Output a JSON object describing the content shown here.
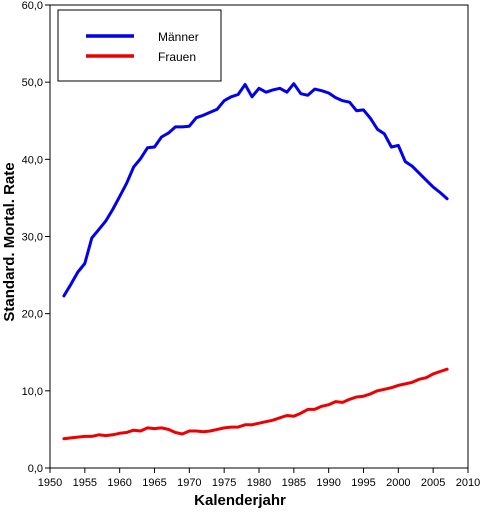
{
  "chart_data": {
    "type": "line",
    "xlabel": "Kalenderjahr",
    "ylabel": "Standard. Mortal. Rate",
    "xlim": [
      1950,
      2010
    ],
    "ylim": [
      0,
      60
    ],
    "xticks": [
      1950,
      1955,
      1960,
      1965,
      1970,
      1975,
      1980,
      1985,
      1990,
      1995,
      2000,
      2005,
      2010
    ],
    "xtick_labels": [
      "1950",
      "1955",
      "1960",
      "1965",
      "1970",
      "1975",
      "1980",
      "1985",
      "1990",
      "1995",
      "2000",
      "2005",
      "2010"
    ],
    "yticks": [
      0,
      10,
      20,
      30,
      40,
      50,
      60
    ],
    "ytick_labels": [
      "0,0",
      "10,0",
      "20,0",
      "30,0",
      "40,0",
      "50,0",
      "60,0"
    ],
    "grid": false,
    "legend_position": "top-left",
    "series": [
      {
        "name": "Männer",
        "color": "#0000ee",
        "x": [
          1952,
          1953,
          1954,
          1955,
          1956,
          1957,
          1958,
          1959,
          1960,
          1961,
          1962,
          1963,
          1964,
          1965,
          1966,
          1967,
          1968,
          1969,
          1970,
          1971,
          1972,
          1973,
          1974,
          1975,
          1976,
          1977,
          1978,
          1979,
          1980,
          1981,
          1982,
          1983,
          1984,
          1985,
          1986,
          1987,
          1988,
          1989,
          1990,
          1991,
          1992,
          1993,
          1994,
          1995,
          1996,
          1997,
          1998,
          1999,
          2000,
          2001,
          2002,
          2003,
          2004,
          2005,
          2006,
          2007
        ],
        "values": [
          22.3,
          23.8,
          25.4,
          26.5,
          29.8,
          30.9,
          32.0,
          33.5,
          35.2,
          36.9,
          39.0,
          40.1,
          41.5,
          41.6,
          42.9,
          43.4,
          44.2,
          44.2,
          44.3,
          45.4,
          45.7,
          46.1,
          46.5,
          47.6,
          48.1,
          48.4,
          49.7,
          48.1,
          49.2,
          48.7,
          49.0,
          49.2,
          48.7,
          49.8,
          48.5,
          48.3,
          49.1,
          48.9,
          48.6,
          48.0,
          47.6,
          47.4,
          46.3,
          46.4,
          45.3,
          43.9,
          43.3,
          41.6,
          41.8,
          39.7,
          39.1,
          38.2,
          37.3,
          36.4,
          35.7,
          34.9
        ]
      },
      {
        "name": "Frauen",
        "color": "#ee0000",
        "x": [
          1952,
          1953,
          1954,
          1955,
          1956,
          1957,
          1958,
          1959,
          1960,
          1961,
          1962,
          1963,
          1964,
          1965,
          1966,
          1967,
          1968,
          1969,
          1970,
          1971,
          1972,
          1973,
          1974,
          1975,
          1976,
          1977,
          1978,
          1979,
          1980,
          1981,
          1982,
          1983,
          1984,
          1985,
          1986,
          1987,
          1988,
          1989,
          1990,
          1991,
          1992,
          1993,
          1994,
          1995,
          1996,
          1997,
          1998,
          1999,
          2000,
          2001,
          2002,
          2003,
          2004,
          2005,
          2006,
          2007
        ],
        "values": [
          3.8,
          3.9,
          4.0,
          4.1,
          4.1,
          4.3,
          4.2,
          4.3,
          4.5,
          4.6,
          4.9,
          4.8,
          5.2,
          5.1,
          5.2,
          5.0,
          4.6,
          4.4,
          4.8,
          4.8,
          4.7,
          4.8,
          5.0,
          5.2,
          5.3,
          5.3,
          5.6,
          5.6,
          5.8,
          6.0,
          6.2,
          6.5,
          6.8,
          6.7,
          7.1,
          7.6,
          7.6,
          8.0,
          8.2,
          8.6,
          8.5,
          8.9,
          9.2,
          9.3,
          9.6,
          10.0,
          10.2,
          10.4,
          10.7,
          10.9,
          11.1,
          11.5,
          11.7,
          12.2,
          12.5,
          12.8
        ]
      }
    ]
  }
}
